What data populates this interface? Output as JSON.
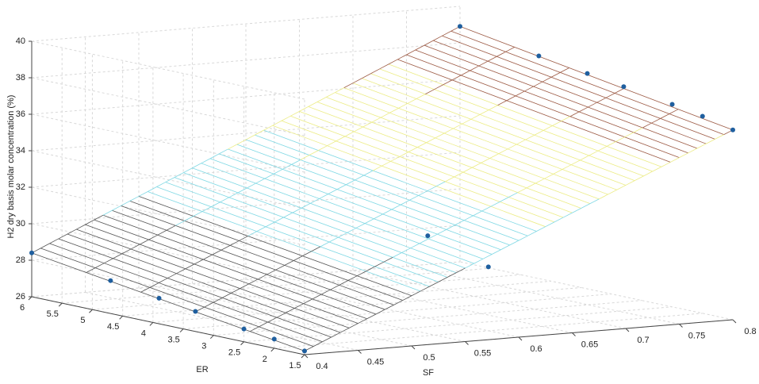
{
  "chart_data": {
    "type": "surface3d",
    "zlabel": "H2 dry basis molar concentration (%)",
    "xlabel": "SF",
    "ylabel": "ER",
    "xlim": [
      0.4,
      0.8
    ],
    "xticks": [
      0.4,
      0.45,
      0.5,
      0.55,
      0.6,
      0.65,
      0.7,
      0.75,
      0.8
    ],
    "ylim": [
      1.5,
      6
    ],
    "yticks": [
      1.5,
      2,
      2.5,
      3,
      3.5,
      4,
      4.5,
      5,
      5.5,
      6
    ],
    "zlim": [
      26,
      40
    ],
    "zticks": [
      26,
      28,
      30,
      32,
      34,
      36,
      38,
      40
    ],
    "grid": true,
    "surface": {
      "x": [
        0.4,
        0.8
      ],
      "y": [
        1.5,
        6
      ],
      "z": [
        [
          26.2,
          28.4
        ],
        [
          36.4,
          38.9
        ]
      ]
    },
    "colormap": [
      "#555555",
      "#7fd8e4",
      "#ecec86",
      "#9c5a44"
    ],
    "points": {
      "color": "#1f5f9f",
      "x": [
        0.4,
        0.4,
        0.4,
        0.4,
        0.4,
        0.4,
        0.4,
        0.8,
        0.8,
        0.8,
        0.8,
        0.8,
        0.8,
        0.8,
        0.6,
        0.6
      ],
      "y": [
        6,
        4.7,
        3.9,
        3.3,
        2.5,
        2,
        1.5,
        6,
        4.7,
        3.9,
        3.3,
        2.5,
        2,
        1.5,
        3,
        2
      ],
      "z": [
        28.4,
        27.8,
        27.4,
        27.1,
        26.7,
        26.5,
        26.2,
        38.9,
        38.2,
        37.8,
        37.5,
        37.1,
        36.8,
        36.4,
        30.5,
        29.5
      ]
    }
  }
}
